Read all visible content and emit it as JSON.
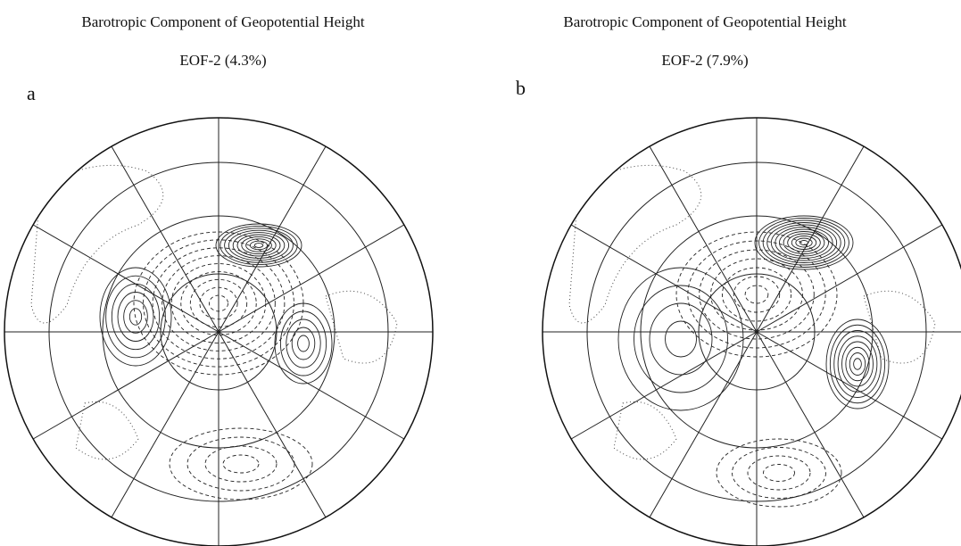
{
  "panels": [
    {
      "title": "Barotropic Component of Geopotential Height",
      "subtitle": "EOF-2 (4.3%)",
      "label": "a"
    },
    {
      "title": "Barotropic Component of Geopotential Height",
      "subtitle": "EOF-2 (7.9%)",
      "label": "b"
    }
  ]
}
